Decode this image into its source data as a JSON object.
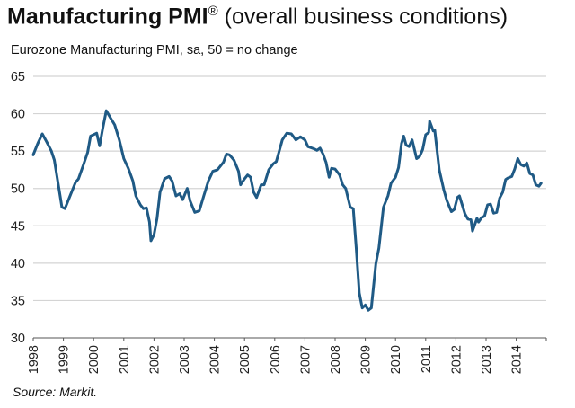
{
  "chart_data": {
    "type": "line",
    "title_bold": "Manufacturing PMI",
    "title_mark": "®",
    "title_rest": " (overall business conditions)",
    "subtitle": "Eurozone Manufacturing PMI, sa, 50 = no change",
    "source": "Source: Markit.",
    "xlabel": "",
    "ylabel": "",
    "xlim": [
      1998,
      2014.95
    ],
    "ylim": [
      30,
      65
    ],
    "yticks": [
      30,
      35,
      40,
      45,
      50,
      55,
      60,
      65
    ],
    "xticks": [
      "1998",
      "1999",
      "2000",
      "2001",
      "2002",
      "2003",
      "2004",
      "2005",
      "2006",
      "2007",
      "2008",
      "2009",
      "2010",
      "2011",
      "2012",
      "2013",
      "2014"
    ],
    "grid": "horizontal",
    "line_color": "#1f5a85",
    "series": [
      {
        "name": "Eurozone Manufacturing PMI",
        "points": [
          [
            1998.0,
            54.5
          ],
          [
            1998.15,
            56
          ],
          [
            1998.3,
            57.3
          ],
          [
            1998.45,
            56.2
          ],
          [
            1998.6,
            55
          ],
          [
            1998.7,
            53.8
          ],
          [
            1998.85,
            50
          ],
          [
            1998.95,
            47.5
          ],
          [
            1999.05,
            47.3
          ],
          [
            1999.2,
            48.8
          ],
          [
            1999.4,
            50.8
          ],
          [
            1999.5,
            51.3
          ],
          [
            1999.65,
            53
          ],
          [
            1999.8,
            54.8
          ],
          [
            1999.9,
            57
          ],
          [
            2000.1,
            57.4
          ],
          [
            2000.2,
            55.7
          ],
          [
            2000.3,
            58
          ],
          [
            2000.42,
            60.4
          ],
          [
            2000.55,
            59.5
          ],
          [
            2000.7,
            58.5
          ],
          [
            2000.85,
            56.5
          ],
          [
            2001.0,
            54
          ],
          [
            2001.15,
            52.7
          ],
          [
            2001.3,
            51
          ],
          [
            2001.4,
            49
          ],
          [
            2001.55,
            47.8
          ],
          [
            2001.65,
            47.3
          ],
          [
            2001.75,
            47.4
          ],
          [
            2001.85,
            45.5
          ],
          [
            2001.9,
            43
          ],
          [
            2002.0,
            43.8
          ],
          [
            2002.1,
            46
          ],
          [
            2002.2,
            49.5
          ],
          [
            2002.35,
            51.3
          ],
          [
            2002.5,
            51.6
          ],
          [
            2002.6,
            51
          ],
          [
            2002.73,
            49
          ],
          [
            2002.85,
            49.3
          ],
          [
            2002.95,
            48.5
          ],
          [
            2003.1,
            50
          ],
          [
            2003.2,
            48.3
          ],
          [
            2003.35,
            46.8
          ],
          [
            2003.5,
            47
          ],
          [
            2003.65,
            49
          ],
          [
            2003.8,
            51
          ],
          [
            2003.95,
            52.3
          ],
          [
            2004.1,
            52.5
          ],
          [
            2004.3,
            53.5
          ],
          [
            2004.4,
            54.6
          ],
          [
            2004.5,
            54.5
          ],
          [
            2004.65,
            53.8
          ],
          [
            2004.8,
            52.3
          ],
          [
            2004.87,
            50.5
          ],
          [
            2005.0,
            51.3
          ],
          [
            2005.1,
            51.8
          ],
          [
            2005.2,
            51.5
          ],
          [
            2005.3,
            49.5
          ],
          [
            2005.4,
            48.8
          ],
          [
            2005.55,
            50.5
          ],
          [
            2005.65,
            50.5
          ],
          [
            2005.8,
            52.5
          ],
          [
            2005.95,
            53.3
          ],
          [
            2006.05,
            53.6
          ],
          [
            2006.15,
            55
          ],
          [
            2006.25,
            56.5
          ],
          [
            2006.4,
            57.4
          ],
          [
            2006.55,
            57.3
          ],
          [
            2006.7,
            56.5
          ],
          [
            2006.85,
            56.9
          ],
          [
            2007.0,
            56.5
          ],
          [
            2007.1,
            55.6
          ],
          [
            2007.3,
            55.3
          ],
          [
            2007.4,
            55.1
          ],
          [
            2007.5,
            55.4
          ],
          [
            2007.6,
            54.6
          ],
          [
            2007.7,
            53.5
          ],
          [
            2007.8,
            51.5
          ],
          [
            2007.88,
            52.7
          ],
          [
            2008.0,
            52.6
          ],
          [
            2008.15,
            51.8
          ],
          [
            2008.25,
            50.5
          ],
          [
            2008.35,
            50
          ],
          [
            2008.5,
            47.5
          ],
          [
            2008.6,
            47.3
          ],
          [
            2008.7,
            42
          ],
          [
            2008.8,
            36
          ],
          [
            2008.9,
            34
          ],
          [
            2009.0,
            34.4
          ],
          [
            2009.1,
            33.7
          ],
          [
            2009.2,
            34
          ],
          [
            2009.35,
            40
          ],
          [
            2009.45,
            42
          ],
          [
            2009.6,
            47.5
          ],
          [
            2009.75,
            49
          ],
          [
            2009.85,
            50.7
          ],
          [
            2010.0,
            51.5
          ],
          [
            2010.1,
            52.8
          ],
          [
            2010.2,
            56
          ],
          [
            2010.27,
            57
          ],
          [
            2010.35,
            55.8
          ],
          [
            2010.45,
            55.6
          ],
          [
            2010.55,
            56.5
          ],
          [
            2010.7,
            54
          ],
          [
            2010.8,
            54.3
          ],
          [
            2010.9,
            55.2
          ],
          [
            2011.0,
            57.2
          ],
          [
            2011.1,
            57.5
          ],
          [
            2011.13,
            59
          ],
          [
            2011.25,
            57.7
          ],
          [
            2011.3,
            57.8
          ],
          [
            2011.45,
            52.5
          ],
          [
            2011.6,
            49.8
          ],
          [
            2011.7,
            48.4
          ],
          [
            2011.85,
            46.9
          ],
          [
            2011.95,
            47.2
          ],
          [
            2012.05,
            48.8
          ],
          [
            2012.12,
            49
          ],
          [
            2012.3,
            46.6
          ],
          [
            2012.4,
            45.9
          ],
          [
            2012.5,
            45.8
          ],
          [
            2012.55,
            44.3
          ],
          [
            2012.7,
            46
          ],
          [
            2012.75,
            45.5
          ],
          [
            2012.85,
            46.1
          ],
          [
            2012.95,
            46.3
          ],
          [
            2013.05,
            47.8
          ],
          [
            2013.15,
            47.9
          ],
          [
            2013.25,
            46.7
          ],
          [
            2013.35,
            46.8
          ],
          [
            2013.45,
            48.7
          ],
          [
            2013.55,
            49.5
          ],
          [
            2013.65,
            51.2
          ],
          [
            2013.72,
            51.4
          ],
          [
            2013.85,
            51.6
          ],
          [
            2013.95,
            52.6
          ],
          [
            2014.05,
            54
          ],
          [
            2014.15,
            53.2
          ],
          [
            2014.25,
            53
          ],
          [
            2014.35,
            53.4
          ],
          [
            2014.45,
            52
          ],
          [
            2014.55,
            51.8
          ],
          [
            2014.65,
            50.5
          ],
          [
            2014.75,
            50.3
          ],
          [
            2014.82,
            50.7
          ]
        ]
      }
    ]
  }
}
